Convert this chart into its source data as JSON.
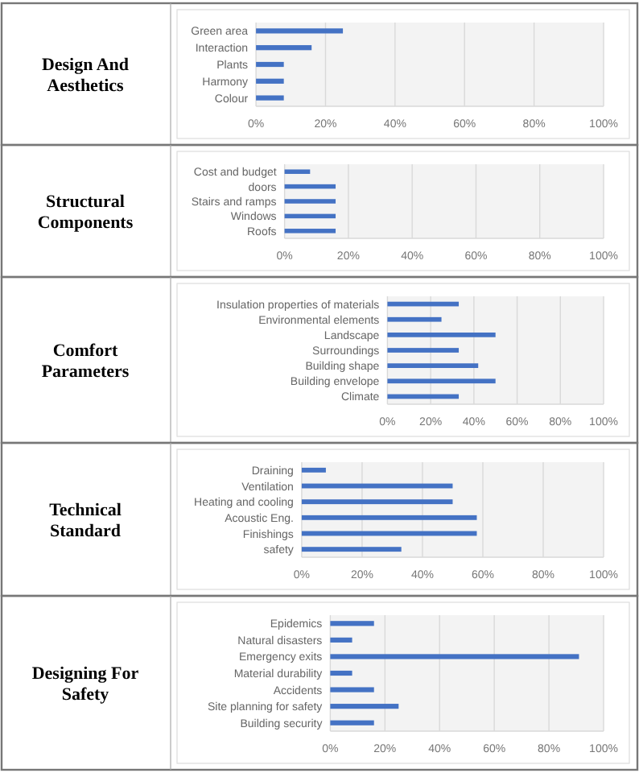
{
  "chart_data": [
    {
      "type": "bar",
      "orientation": "horizontal",
      "title": "Design And Aesthetics",
      "categories": [
        "Green area",
        "Interaction",
        "Plants",
        "Harmony",
        "Colour"
      ],
      "values": [
        25,
        16,
        8,
        8,
        8
      ],
      "color": "#4472c4",
      "xlim": [
        0,
        100
      ],
      "xticks": [
        {
          "value": 0,
          "label": "0%"
        },
        {
          "value": 20,
          "label": "20%"
        },
        {
          "value": 40,
          "label": "40%"
        },
        {
          "value": 60,
          "label": "60%"
        },
        {
          "value": 80,
          "label": "80%"
        },
        {
          "value": 100,
          "label": "100%"
        }
      ],
      "grid": "x"
    },
    {
      "type": "bar",
      "orientation": "horizontal",
      "title": "Structural Components",
      "categories": [
        "Cost and budget",
        "doors",
        "Stairs and ramps",
        "Windows",
        "Roofs"
      ],
      "values": [
        8,
        16,
        16,
        16,
        16
      ],
      "color": "#4472c4",
      "xlim": [
        0,
        100
      ],
      "xticks": [
        {
          "value": 0,
          "label": "0%"
        },
        {
          "value": 20,
          "label": "20%"
        },
        {
          "value": 40,
          "label": "40%"
        },
        {
          "value": 60,
          "label": "60%"
        },
        {
          "value": 80,
          "label": "80%"
        },
        {
          "value": 100,
          "label": "100%"
        }
      ],
      "grid": "x"
    },
    {
      "type": "bar",
      "orientation": "horizontal",
      "title": "Comfort Parameters",
      "categories": [
        "Insulation properties of materials",
        "Environmental elements",
        "Landscape",
        "Surroundings",
        "Building shape",
        "Building envelope",
        "Climate"
      ],
      "values": [
        33,
        25,
        50,
        33,
        42,
        50,
        33
      ],
      "color": "#4472c4",
      "xlim": [
        0,
        100
      ],
      "xticks": [
        {
          "value": 0,
          "label": "0%"
        },
        {
          "value": 20,
          "label": "20%"
        },
        {
          "value": 40,
          "label": "40%"
        },
        {
          "value": 60,
          "label": "60%"
        },
        {
          "value": 80,
          "label": "80%"
        },
        {
          "value": 100,
          "label": "100%"
        }
      ],
      "grid": "x"
    },
    {
      "type": "bar",
      "orientation": "horizontal",
      "title": "Technical Standard",
      "categories": [
        "Draining",
        "Ventilation",
        "Heating and cooling",
        "Acoustic Eng.",
        "Finishings",
        "safety"
      ],
      "values": [
        8,
        50,
        50,
        58,
        58,
        33
      ],
      "color": "#4472c4",
      "xlim": [
        0,
        100
      ],
      "xticks": [
        {
          "value": 0,
          "label": "0%"
        },
        {
          "value": 20,
          "label": "20%"
        },
        {
          "value": 40,
          "label": "40%"
        },
        {
          "value": 60,
          "label": "60%"
        },
        {
          "value": 80,
          "label": "80%"
        },
        {
          "value": 100,
          "label": "100%"
        }
      ],
      "grid": "x"
    },
    {
      "type": "bar",
      "orientation": "horizontal",
      "title": "Designing For Safety",
      "categories": [
        "Epidemics",
        "Natural disasters",
        "Emergency exits",
        "Material durability",
        "Accidents",
        "Site planning for safety",
        "Building security"
      ],
      "values": [
        16,
        8,
        91,
        8,
        16,
        25,
        16
      ],
      "color": "#4472c4",
      "xlim": [
        0,
        100
      ],
      "xticks": [
        {
          "value": 0,
          "label": "0%"
        },
        {
          "value": 20,
          "label": "20%"
        },
        {
          "value": 40,
          "label": "40%"
        },
        {
          "value": 60,
          "label": "60%"
        },
        {
          "value": 80,
          "label": "80%"
        },
        {
          "value": 100,
          "label": "100%"
        }
      ],
      "grid": "x"
    }
  ]
}
